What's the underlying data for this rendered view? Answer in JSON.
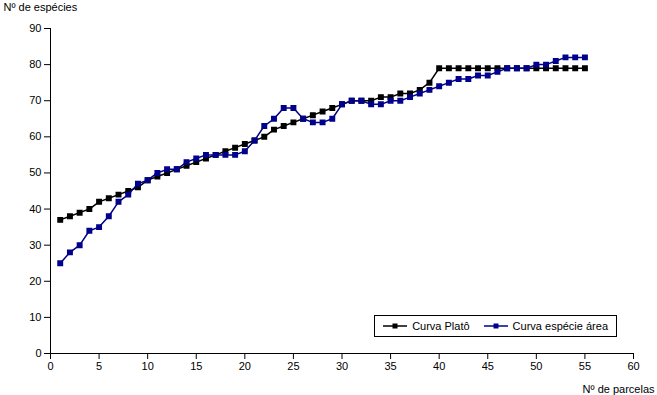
{
  "chart_data": {
    "type": "line",
    "xlabel": "Nº de parcelas",
    "ylabel": "Nº de espécies",
    "x": [
      1,
      2,
      3,
      4,
      5,
      6,
      7,
      8,
      9,
      10,
      11,
      12,
      13,
      14,
      15,
      16,
      17,
      18,
      19,
      20,
      21,
      22,
      23,
      24,
      25,
      26,
      27,
      28,
      29,
      30,
      31,
      32,
      33,
      34,
      35,
      36,
      37,
      38,
      39,
      40,
      41,
      42,
      43,
      44,
      45,
      46,
      47,
      48,
      49,
      50,
      51,
      52,
      53,
      54,
      55
    ],
    "series": [
      {
        "name": "Curva Platô",
        "color": "#000000",
        "marker": "square",
        "values": [
          37,
          38,
          39,
          40,
          42,
          43,
          44,
          45,
          46,
          48,
          49,
          50,
          51,
          52,
          53,
          54,
          55,
          56,
          57,
          58,
          59,
          60,
          62,
          63,
          64,
          65,
          66,
          67,
          68,
          69,
          70,
          70,
          70,
          71,
          71,
          72,
          72,
          73,
          75,
          79,
          79,
          79,
          79,
          79,
          79,
          79,
          79,
          79,
          79,
          79,
          79,
          79,
          79,
          79,
          79
        ]
      },
      {
        "name": "Curva espécie área",
        "color": "#00008B",
        "marker": "square",
        "values": [
          25,
          28,
          30,
          34,
          35,
          38,
          42,
          44,
          47,
          48,
          50,
          51,
          51,
          53,
          54,
          55,
          55,
          55,
          55,
          56,
          59,
          63,
          65,
          68,
          68,
          65,
          64,
          64,
          65,
          69,
          70,
          70,
          69,
          69,
          70,
          70,
          71,
          72,
          73,
          74,
          75,
          76,
          76,
          77,
          77,
          78,
          79,
          79,
          79,
          80,
          80,
          81,
          82,
          82,
          82
        ]
      }
    ],
    "xlim": [
      0,
      60
    ],
    "ylim": [
      0,
      90
    ],
    "xticks": [
      0,
      5,
      10,
      15,
      20,
      25,
      30,
      35,
      40,
      45,
      50,
      55,
      60
    ],
    "yticks": [
      0,
      10,
      20,
      30,
      40,
      50,
      60,
      70,
      80,
      90
    ],
    "grid": false,
    "legend": "lower right"
  }
}
